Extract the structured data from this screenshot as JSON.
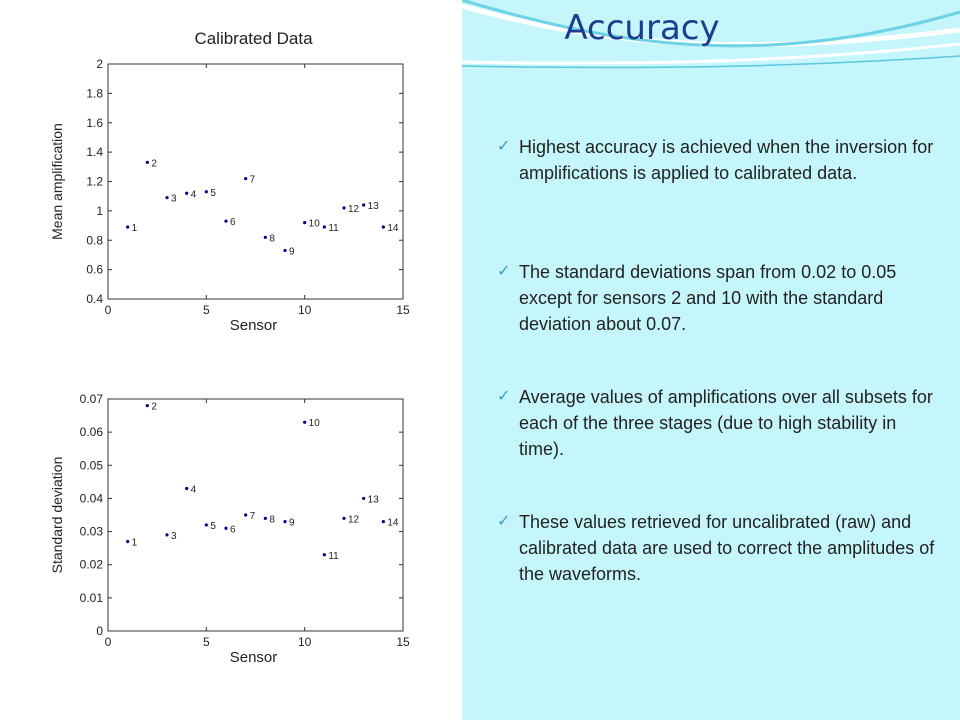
{
  "title": "Accuracy",
  "bullets": [
    "Highest accuracy is achieved when the inversion for amplifications is applied to calibrated data.",
    "The standard deviations span from 0.02 to 0.05 except for sensors 2 and 10 with the standard deviation about 0.07.",
    "Average values of amplifications over all subsets for each of the three stages (due to high stability in time).",
    "These values retrieved for uncalibrated (raw) and calibrated data are used to correct the amplitudes of the waveforms."
  ],
  "chart_data": [
    {
      "type": "scatter",
      "title": "Calibrated Data",
      "xlabel": "Sensor",
      "ylabel": "Mean amplification",
      "x": [
        1,
        2,
        3,
        4,
        5,
        6,
        7,
        8,
        9,
        10,
        11,
        12,
        13,
        14
      ],
      "values": [
        0.89,
        1.33,
        1.09,
        1.12,
        1.13,
        0.93,
        1.22,
        0.82,
        0.73,
        0.92,
        0.89,
        1.02,
        1.04,
        0.89
      ],
      "point_labels": [
        "1",
        "2",
        "3",
        "4",
        "5",
        "6",
        "7",
        "8",
        "9",
        "10",
        "11",
        "12",
        "13",
        "14"
      ],
      "color": "#00008b",
      "xlim": [
        0,
        15
      ],
      "xticks": [
        0,
        5,
        10,
        15
      ],
      "ylim": [
        0.4,
        2
      ],
      "yticks": [
        0.4,
        0.6,
        0.8,
        1,
        1.2,
        1.4,
        1.6,
        1.8,
        2
      ]
    },
    {
      "type": "scatter",
      "xlabel": "Sensor",
      "ylabel": "Standard deviation",
      "x": [
        1,
        2,
        3,
        4,
        5,
        6,
        7,
        8,
        9,
        10,
        11,
        12,
        13,
        14
      ],
      "values": [
        0.027,
        0.068,
        0.029,
        0.043,
        0.032,
        0.031,
        0.035,
        0.034,
        0.033,
        0.063,
        0.023,
        0.034,
        0.04,
        0.033
      ],
      "point_labels": [
        "1",
        "2",
        "3",
        "4",
        "5",
        "6",
        "7",
        "8",
        "9",
        "10",
        "11",
        "12",
        "13",
        "14"
      ],
      "color": "#00008b",
      "xlim": [
        0,
        15
      ],
      "xticks": [
        0,
        5,
        10,
        15
      ],
      "ylim": [
        0,
        0.07
      ],
      "yticks": [
        0,
        0.01,
        0.02,
        0.03,
        0.04,
        0.05,
        0.06,
        0.07
      ]
    }
  ]
}
